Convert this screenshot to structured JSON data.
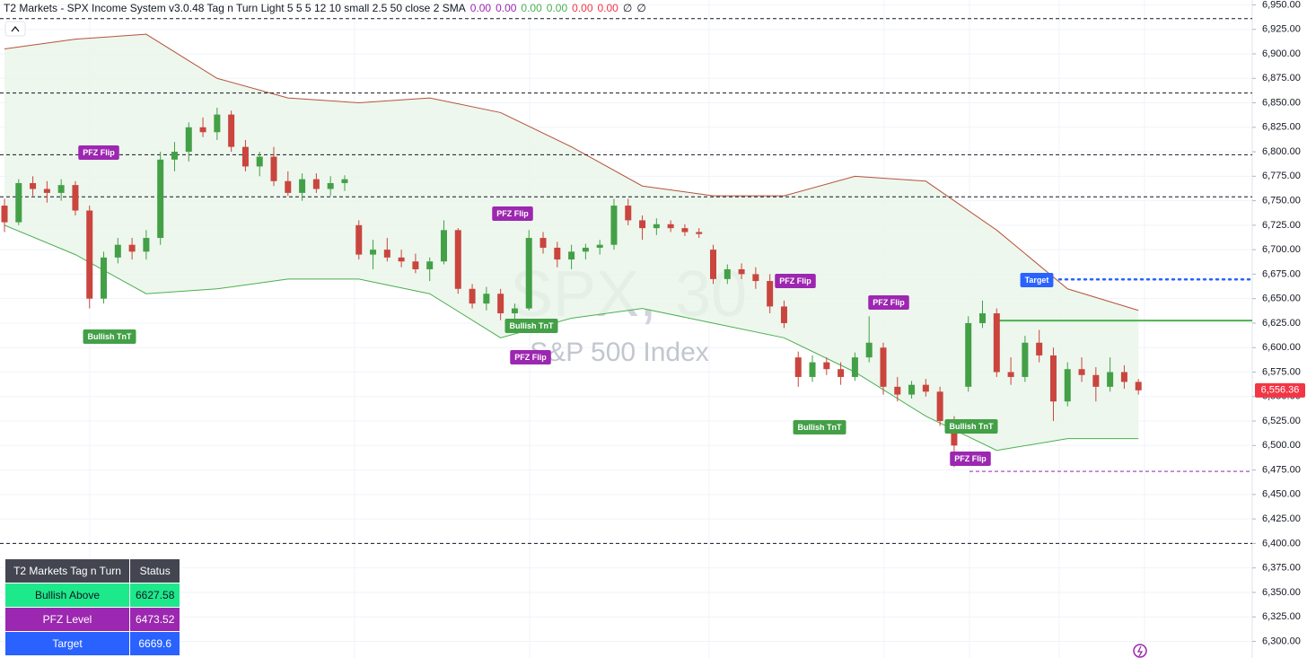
{
  "chart_data": {
    "type": "candlestick",
    "title": "T2 Markets - SPX Income System v3.0.48 Tag n Turn Light 5 5 5 12 10 small 2.5 50 close 2 SMA",
    "title_values": [
      "0.00",
      "0.00",
      "0.00",
      "0.00",
      "0.00",
      "0.00",
      "∅",
      "∅"
    ],
    "title_value_colors": [
      "#9c27b0",
      "#9c27b0",
      "#4caf50",
      "#4caf50",
      "#f23645",
      "#f23645",
      "#131722",
      "#131722"
    ],
    "watermark": "SPX, 30",
    "subtitle": "S&P 500 Index",
    "up_color": "#43a047",
    "down_color": "#c9453e",
    "grid": true,
    "ylim": [
      6283,
      6955
    ],
    "yticks": [
      {
        "value": 6300,
        "label": "6,300.00"
      },
      {
        "value": 6325,
        "label": "6,325.00"
      },
      {
        "value": 6350,
        "label": "6,350.00"
      },
      {
        "value": 6375,
        "label": "6,375.00"
      },
      {
        "value": 6400,
        "label": "6,400.00"
      },
      {
        "value": 6425,
        "label": "6,425.00"
      },
      {
        "value": 6450,
        "label": "6,450.00"
      },
      {
        "value": 6475,
        "label": "6,475.00"
      },
      {
        "value": 6500,
        "label": "6,500.00"
      },
      {
        "value": 6525,
        "label": "6,525.00"
      },
      {
        "value": 6550,
        "label": "6,550.00"
      },
      {
        "value": 6575,
        "label": "6,575.00"
      },
      {
        "value": 6600,
        "label": "6,600.00"
      },
      {
        "value": 6625,
        "label": "6,625.00"
      },
      {
        "value": 6650,
        "label": "6,650.00"
      },
      {
        "value": 6675,
        "label": "6,675.00"
      },
      {
        "value": 6700,
        "label": "6,700.00"
      },
      {
        "value": 6725,
        "label": "6,725.00"
      },
      {
        "value": 6750,
        "label": "6,750.00"
      },
      {
        "value": 6775,
        "label": "6,775.00"
      },
      {
        "value": 6800,
        "label": "6,800.00"
      },
      {
        "value": 6825,
        "label": "6,825.00"
      },
      {
        "value": 6850,
        "label": "6,850.00"
      },
      {
        "value": 6875,
        "label": "6,875.00"
      },
      {
        "value": 6900,
        "label": "6,900.00"
      },
      {
        "value": 6925,
        "label": "6,925.00"
      },
      {
        "value": 6950,
        "label": "6,950.00"
      }
    ],
    "ohlc": [
      [
        6745,
        6752,
        6718,
        6728
      ],
      [
        6728,
        6772,
        6725,
        6768
      ],
      [
        6768,
        6775,
        6755,
        6762
      ],
      [
        6762,
        6770,
        6748,
        6758
      ],
      [
        6758,
        6772,
        6750,
        6766
      ],
      [
        6766,
        6770,
        6735,
        6740
      ],
      [
        6740,
        6745,
        6640,
        6650
      ],
      [
        6650,
        6698,
        6645,
        6692
      ],
      [
        6692,
        6712,
        6686,
        6705
      ],
      [
        6705,
        6712,
        6690,
        6698
      ],
      [
        6698,
        6720,
        6690,
        6712
      ],
      [
        6712,
        6800,
        6705,
        6792
      ],
      [
        6792,
        6810,
        6780,
        6800
      ],
      [
        6800,
        6830,
        6790,
        6825
      ],
      [
        6825,
        6835,
        6815,
        6820
      ],
      [
        6820,
        6845,
        6812,
        6838
      ],
      [
        6838,
        6842,
        6800,
        6805
      ],
      [
        6805,
        6812,
        6780,
        6785
      ],
      [
        6785,
        6800,
        6775,
        6795
      ],
      [
        6795,
        6805,
        6765,
        6770
      ],
      [
        6770,
        6780,
        6755,
        6758
      ],
      [
        6758,
        6778,
        6750,
        6772
      ],
      [
        6772,
        6778,
        6758,
        6762
      ],
      [
        6762,
        6775,
        6755,
        6768
      ],
      [
        6768,
        6776,
        6760,
        6772
      ],
      [
        6725,
        6730,
        6690,
        6695
      ],
      [
        6695,
        6710,
        6680,
        6700
      ],
      [
        6700,
        6712,
        6688,
        6692
      ],
      [
        6692,
        6700,
        6682,
        6688
      ],
      [
        6688,
        6696,
        6676,
        6680
      ],
      [
        6680,
        6692,
        6668,
        6688
      ],
      [
        6688,
        6730,
        6685,
        6720
      ],
      [
        6720,
        6722,
        6655,
        6660
      ],
      [
        6660,
        6665,
        6640,
        6645
      ],
      [
        6645,
        6662,
        6638,
        6655
      ],
      [
        6655,
        6660,
        6628,
        6635
      ],
      [
        6635,
        6645,
        6625,
        6640
      ],
      [
        6640,
        6720,
        6638,
        6712
      ],
      [
        6712,
        6718,
        6696,
        6702
      ],
      [
        6702,
        6708,
        6682,
        6690
      ],
      [
        6690,
        6705,
        6680,
        6698
      ],
      [
        6698,
        6706,
        6690,
        6702
      ],
      [
        6702,
        6710,
        6695,
        6705
      ],
      [
        6705,
        6752,
        6700,
        6745
      ],
      [
        6745,
        6752,
        6725,
        6730
      ],
      [
        6730,
        6735,
        6710,
        6722
      ],
      [
        6722,
        6732,
        6715,
        6726
      ],
      [
        6726,
        6730,
        6718,
        6722
      ],
      [
        6722,
        6726,
        6714,
        6718
      ],
      [
        6718,
        6722,
        6712,
        6716
      ],
      [
        6700,
        6705,
        6665,
        6670
      ],
      [
        6670,
        6685,
        6665,
        6680
      ],
      [
        6680,
        6686,
        6670,
        6675
      ],
      [
        6675,
        6682,
        6660,
        6668
      ],
      [
        6668,
        6675,
        6635,
        6642
      ],
      [
        6642,
        6648,
        6620,
        6625
      ],
      [
        6590,
        6596,
        6560,
        6570
      ],
      [
        6570,
        6592,
        6565,
        6585
      ],
      [
        6585,
        6590,
        6572,
        6578
      ],
      [
        6578,
        6585,
        6562,
        6570
      ],
      [
        6570,
        6595,
        6566,
        6590
      ],
      [
        6590,
        6632,
        6585,
        6605
      ],
      [
        6600,
        6605,
        6552,
        6560
      ],
      [
        6560,
        6570,
        6545,
        6552
      ],
      [
        6552,
        6566,
        6548,
        6562
      ],
      [
        6562,
        6568,
        6550,
        6555
      ],
      [
        6555,
        6560,
        6520,
        6525
      ],
      [
        6525,
        6530,
        6478,
        6500
      ],
      [
        6560,
        6632,
        6555,
        6625
      ],
      [
        6625,
        6648,
        6620,
        6635
      ],
      [
        6635,
        6640,
        6570,
        6575
      ],
      [
        6575,
        6590,
        6562,
        6570
      ],
      [
        6570,
        6612,
        6565,
        6605
      ],
      [
        6605,
        6618,
        6585,
        6592
      ],
      [
        6592,
        6600,
        6525,
        6545
      ],
      [
        6545,
        6585,
        6540,
        6578
      ],
      [
        6578,
        6590,
        6565,
        6572
      ],
      [
        6572,
        6580,
        6545,
        6560
      ],
      [
        6560,
        6590,
        6555,
        6575
      ],
      [
        6575,
        6582,
        6558,
        6565
      ],
      [
        6565,
        6568,
        6552,
        6556.36
      ]
    ],
    "band_x": [
      0,
      5,
      10,
      15,
      20,
      25,
      30,
      35,
      40,
      45,
      50,
      55,
      60,
      65,
      70,
      75,
      80
    ],
    "upper_band": [
      6905,
      6915,
      6920,
      6875,
      6855,
      6850,
      6855,
      6840,
      6805,
      6765,
      6755,
      6755,
      6775,
      6770,
      6720,
      6660,
      6638
    ],
    "lower_band": [
      6725,
      6695,
      6655,
      6660,
      6670,
      6670,
      6655,
      6610,
      6630,
      6640,
      6625,
      6610,
      6575,
      6530,
      6495,
      6507,
      6507
    ],
    "upper_band_color": "#b5533c",
    "lower_band_color": "#4caf50",
    "band_fill": "#e8f5e9",
    "levels": [
      {
        "value": 6936,
        "color": "#131722",
        "style": "dashed"
      },
      {
        "value": 6860,
        "color": "#131722",
        "style": "dashed"
      },
      {
        "value": 6797,
        "color": "#131722",
        "style": "dashed"
      },
      {
        "value": 6754,
        "color": "#131722",
        "style": "dashed"
      },
      {
        "value": 6400,
        "color": "#131722",
        "style": "dashed"
      },
      {
        "value": 6627.58,
        "color": "#4caf50",
        "style": "solid"
      },
      {
        "value": 6473.52,
        "color": "#9c27b0",
        "style": "dashed"
      },
      {
        "value": 6669.6,
        "color": "#2962ff",
        "style": "dotted"
      }
    ],
    "last_price": {
      "value": 6556.36,
      "label": "6,556.36"
    },
    "last_price_color": "#f23645",
    "annotations": [
      {
        "text": "PFZ Flip",
        "color": "#9c27b0"
      },
      {
        "text": "Bullish TnT",
        "color": "#43a047"
      },
      {
        "text": "PFZ Flip",
        "color": "#9c27b0"
      },
      {
        "text": "Bullish TnT",
        "color": "#43a047"
      },
      {
        "text": "PFZ Flip",
        "color": "#9c27b0"
      },
      {
        "text": "PFZ Flip",
        "color": "#9c27b0"
      },
      {
        "text": "PFZ Flip",
        "color": "#9c27b0"
      },
      {
        "text": "Bullish TnT",
        "color": "#43a047"
      },
      {
        "text": "Bullish TnT",
        "color": "#43a047"
      },
      {
        "text": "PFZ Flip",
        "color": "#9c27b0"
      },
      {
        "text": "Target",
        "color": "#2962ff"
      }
    ],
    "table": {
      "header": [
        "T2 Markets Tag n Turn",
        "Status"
      ],
      "rows": [
        [
          "Bullish Above",
          6627.58
        ],
        [
          "PFZ Level",
          6473.52
        ],
        [
          "Target",
          6669.6
        ]
      ],
      "header_color": "#434651",
      "row_colors": [
        "#1de98b",
        "#9c27b0",
        "#2962ff"
      ],
      "row_text_colors": [
        "#131722",
        "#ffffff",
        "#ffffff"
      ]
    }
  }
}
